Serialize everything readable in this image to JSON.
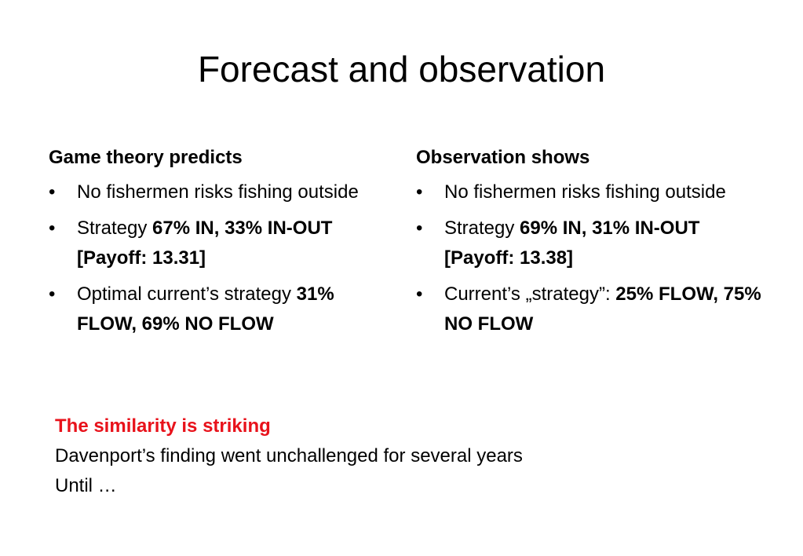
{
  "title": "Forecast and observation",
  "left": {
    "heading": "Game theory predicts",
    "bullets": [
      {
        "text": "No fishermen risks fishing outside"
      },
      {
        "prefix": "Strategy ",
        "bold": "67% IN, 33% IN-OUT [Payoff: 13.31]"
      },
      {
        "prefix": "Optimal current’s strategy ",
        "bold": "31% FLOW,  69% NO FLOW"
      }
    ]
  },
  "right": {
    "heading": "Observation shows",
    "bullets": [
      {
        "text": "No fishermen risks fishing outside"
      },
      {
        "prefix": "Strategy ",
        "bold": "69% IN, 31% IN-OUT [Payoff: 13.38]"
      },
      {
        "prefix": "Current’s „strategy”: ",
        "bold": "25% FLOW, 75% NO FLOW"
      }
    ]
  },
  "footer": {
    "highlight": "The similarity is striking",
    "line2": "Davenport’s finding went unchallenged for several years",
    "line3": "Until …"
  },
  "colors": {
    "accent": "#e8121b",
    "text": "#000000",
    "background": "#ffffff"
  }
}
